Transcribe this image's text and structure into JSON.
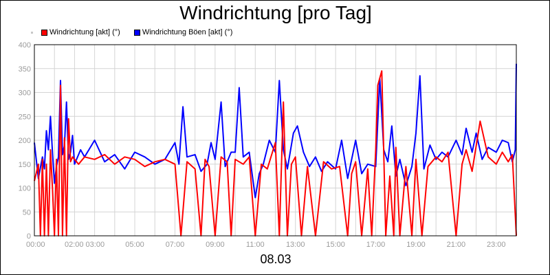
{
  "chart_data": {
    "type": "line",
    "title": "Windrichtung [pro Tag]",
    "xlabel": "08.03",
    "ylabel": "",
    "ylim": [
      0,
      400
    ],
    "y_ticks": [
      "0",
      "50",
      "100",
      "150",
      "200",
      "250",
      "300",
      "350",
      "400"
    ],
    "x_tick_labels": [
      "00:00",
      "02:00 03:00",
      "05:00",
      "07:00",
      "09:00",
      "11:00",
      "13:00",
      "15:00",
      "17:00",
      "19:00",
      "21:00",
      "23:00"
    ],
    "x_tick_hours": [
      0,
      2.5,
      5,
      7,
      9,
      11,
      13,
      15,
      17,
      19,
      21,
      23
    ],
    "xlim_hours": [
      0,
      24
    ],
    "grid": true,
    "legend_position": "top-left",
    "series": [
      {
        "name": "Windrichtung [akt] (°)",
        "color": "#ff0000",
        "x": [
          0,
          0.2,
          0.3,
          0.4,
          0.5,
          0.6,
          0.7,
          0.8,
          0.9,
          1.0,
          1.1,
          1.2,
          1.3,
          1.4,
          1.5,
          1.6,
          1.7,
          1.8,
          1.9,
          2.0,
          2.2,
          2.5,
          3.0,
          3.5,
          4.0,
          4.5,
          5.0,
          5.5,
          6.0,
          6.5,
          7.0,
          7.3,
          7.6,
          8.0,
          8.3,
          8.5,
          8.7,
          9.0,
          9.3,
          9.6,
          9.8,
          10.0,
          10.2,
          10.4,
          10.7,
          11.0,
          11.3,
          11.6,
          12.0,
          12.2,
          12.4,
          12.6,
          12.8,
          13.0,
          13.3,
          13.6,
          14.0,
          14.4,
          14.8,
          15.2,
          15.6,
          15.8,
          16.0,
          16.3,
          16.6,
          16.8,
          17.0,
          17.1,
          17.3,
          17.5,
          17.7,
          17.9,
          18.0,
          18.2,
          18.5,
          18.8,
          19.0,
          19.3,
          19.6,
          20.0,
          20.3,
          20.6,
          21.0,
          21.3,
          21.5,
          21.8,
          22.2,
          22.6,
          23.0,
          23.3,
          23.6,
          23.8,
          24.0
        ],
        "values": [
          115,
          150,
          0,
          160,
          0,
          150,
          0,
          180,
          100,
          0,
          160,
          0,
          315,
          0,
          205,
          0,
          245,
          155,
          165,
          160,
          150,
          165,
          160,
          170,
          150,
          165,
          160,
          145,
          155,
          160,
          150,
          0,
          155,
          140,
          0,
          160,
          145,
          0,
          165,
          155,
          0,
          160,
          155,
          150,
          165,
          0,
          150,
          140,
          195,
          0,
          280,
          0,
          150,
          165,
          0,
          145,
          0,
          155,
          140,
          145,
          0,
          130,
          155,
          0,
          140,
          0,
          180,
          315,
          345,
          0,
          125,
          0,
          185,
          0,
          145,
          0,
          160,
          0,
          145,
          165,
          155,
          175,
          0,
          150,
          180,
          135,
          240,
          165,
          150,
          175,
          155,
          170,
          0
        ]
      },
      {
        "name": "Windrichtung Böen [akt] (°)",
        "color": "#0000ff",
        "x": [
          0,
          0.2,
          0.4,
          0.5,
          0.6,
          0.7,
          0.8,
          0.9,
          1.0,
          1.1,
          1.2,
          1.3,
          1.4,
          1.5,
          1.6,
          1.7,
          1.8,
          1.9,
          2.0,
          2.3,
          2.5,
          3.0,
          3.5,
          4.0,
          4.5,
          5.0,
          5.5,
          6.0,
          6.5,
          7.0,
          7.2,
          7.4,
          7.6,
          8.0,
          8.3,
          8.6,
          8.8,
          9.0,
          9.3,
          9.5,
          9.8,
          10.0,
          10.2,
          10.4,
          10.7,
          11.0,
          11.2,
          11.4,
          11.7,
          12.0,
          12.2,
          12.4,
          12.6,
          12.9,
          13.1,
          13.4,
          13.7,
          14.0,
          14.3,
          14.6,
          15.0,
          15.3,
          15.6,
          16.0,
          16.3,
          16.6,
          17.0,
          17.2,
          17.4,
          17.6,
          17.8,
          18.0,
          18.2,
          18.5,
          18.8,
          19.0,
          19.2,
          19.4,
          19.7,
          20.0,
          20.3,
          20.6,
          21.0,
          21.3,
          21.5,
          21.8,
          22.0,
          22.3,
          22.6,
          23.0,
          23.3,
          23.6,
          23.8,
          23.95,
          24.0
        ],
        "values": [
          195,
          120,
          165,
          140,
          220,
          180,
          250,
          175,
          110,
          145,
          165,
          325,
          170,
          190,
          280,
          160,
          175,
          210,
          150,
          180,
          165,
          200,
          155,
          170,
          140,
          175,
          165,
          150,
          160,
          195,
          150,
          270,
          165,
          170,
          135,
          150,
          195,
          160,
          280,
          145,
          175,
          175,
          310,
          165,
          175,
          80,
          130,
          150,
          200,
          175,
          325,
          180,
          140,
          215,
          230,
          175,
          145,
          165,
          135,
          155,
          140,
          200,
          120,
          200,
          130,
          150,
          145,
          330,
          180,
          155,
          230,
          125,
          160,
          105,
          145,
          215,
          335,
          140,
          190,
          160,
          175,
          165,
          200,
          170,
          225,
          175,
          215,
          160,
          185,
          175,
          200,
          195,
          155,
          180,
          360
        ]
      }
    ]
  }
}
